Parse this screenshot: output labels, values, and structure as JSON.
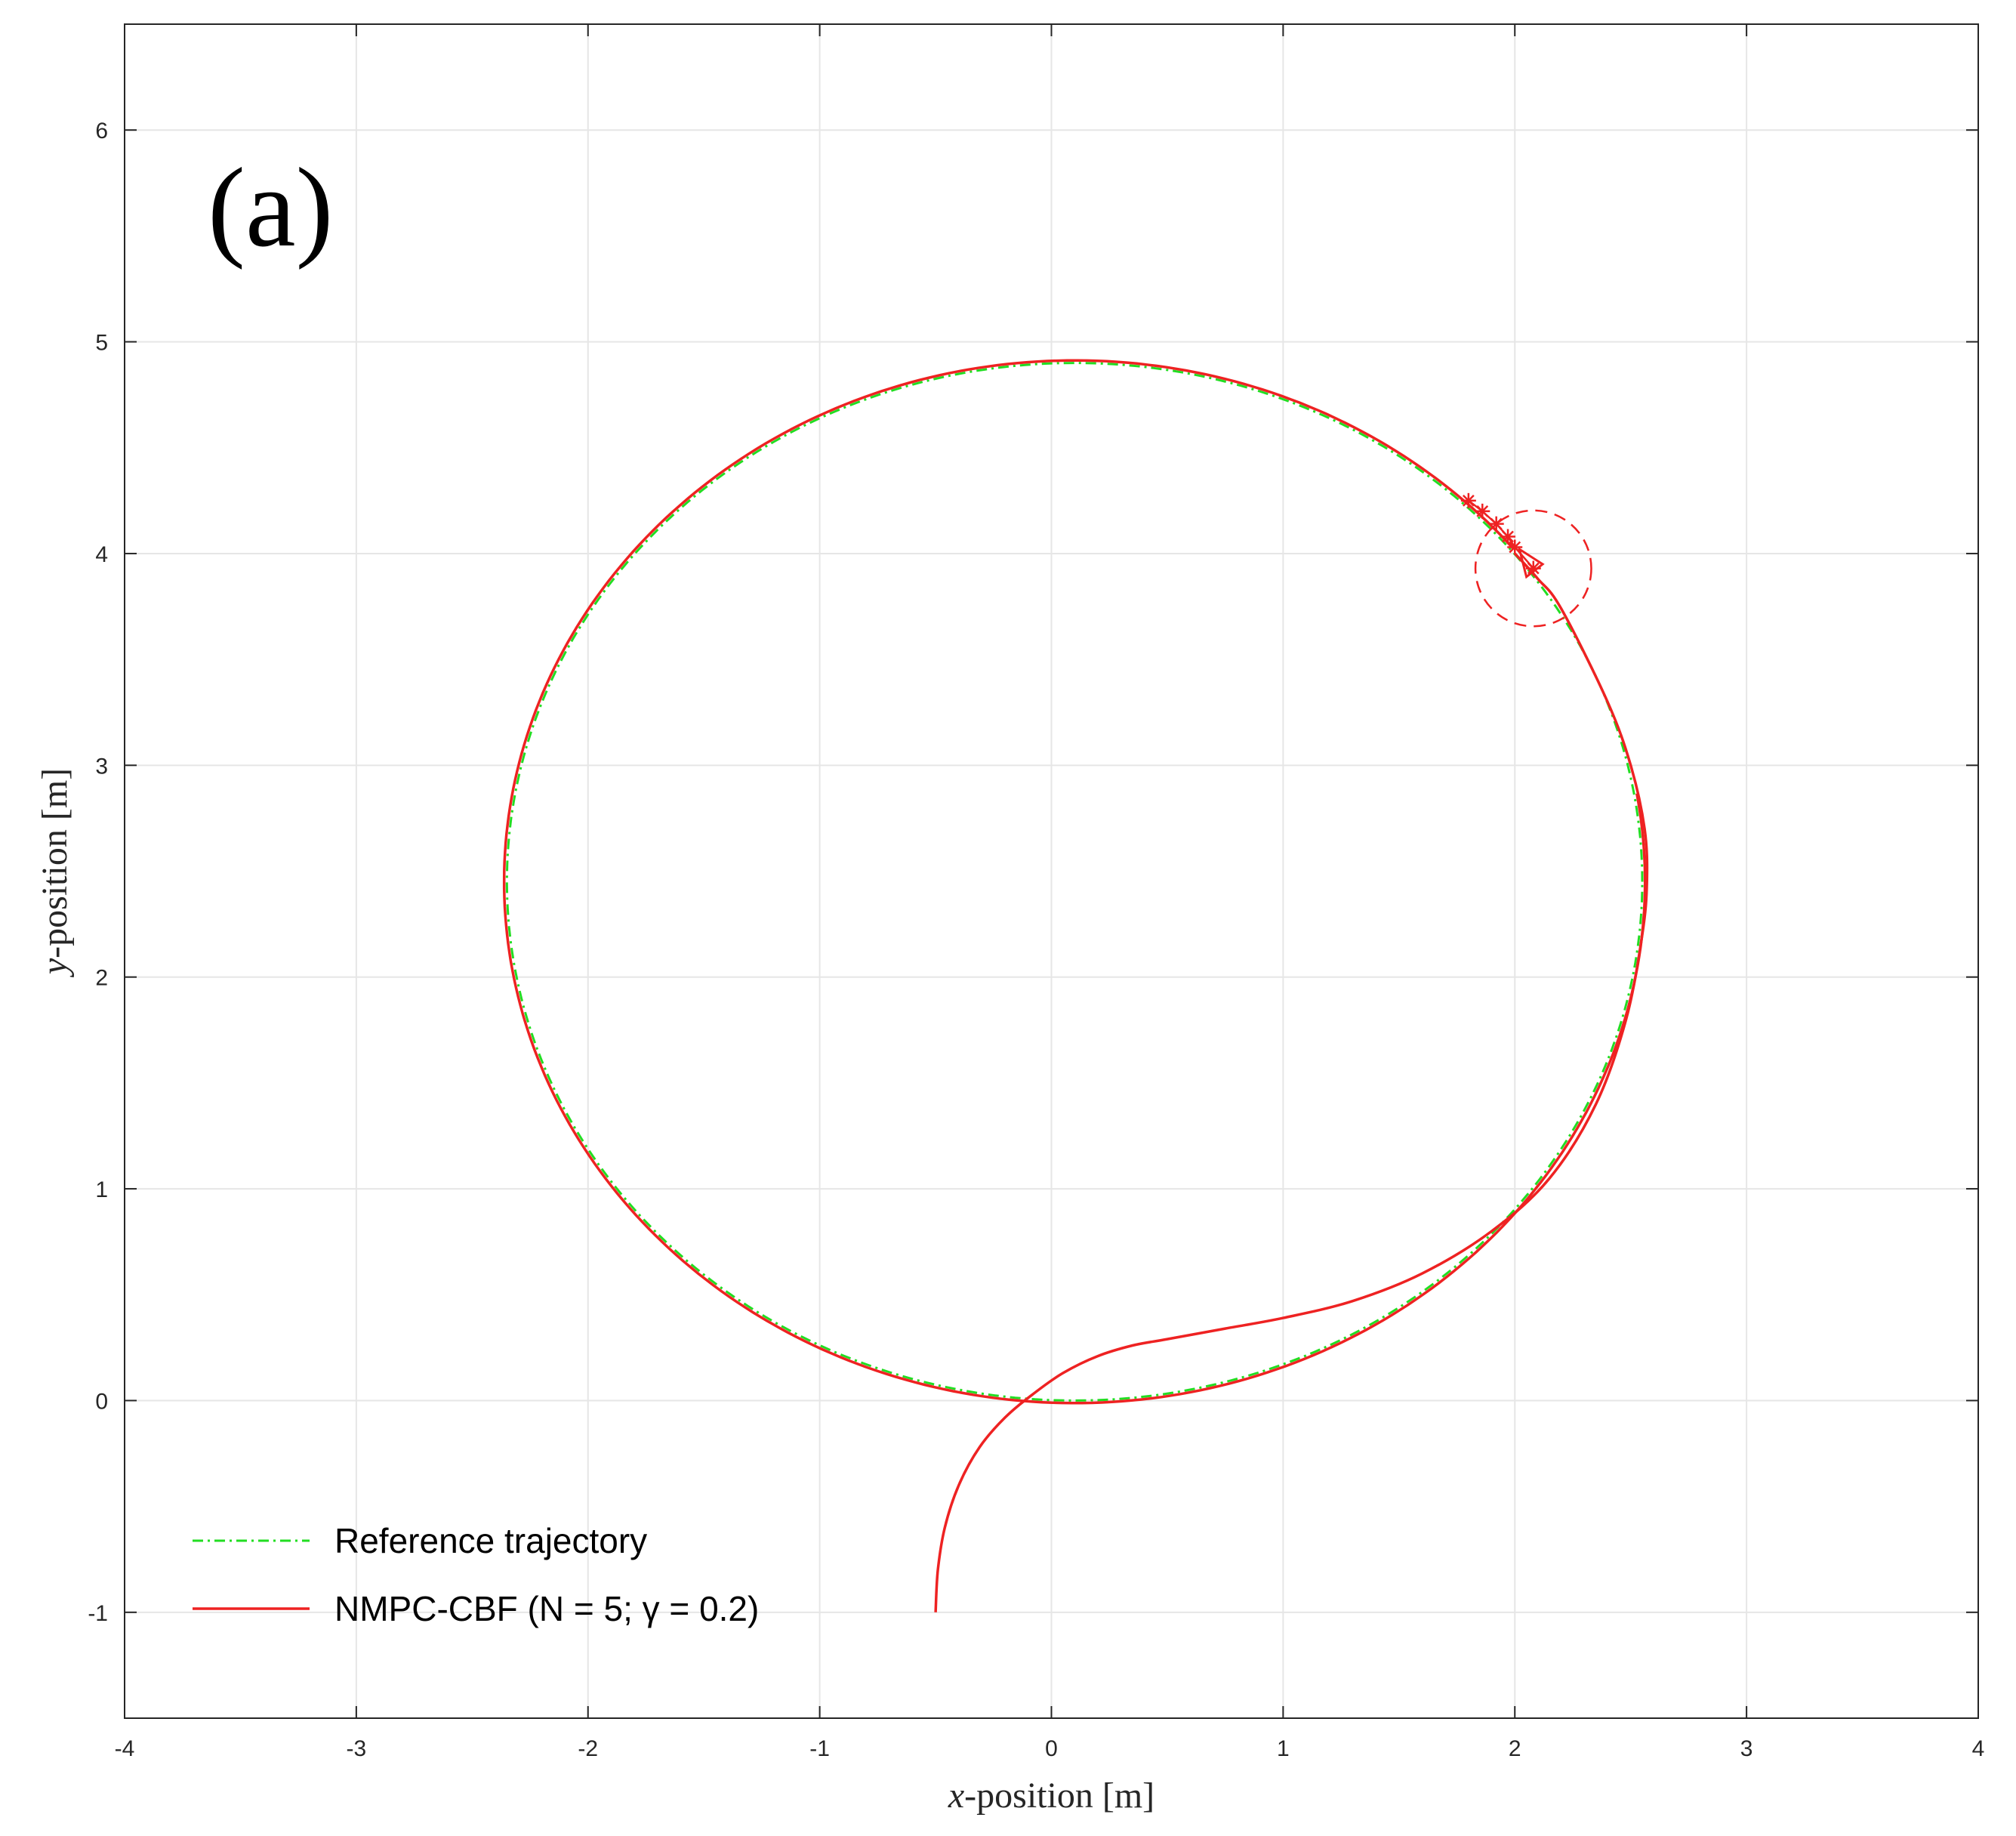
{
  "chart_data": {
    "type": "line",
    "panel_label": "(a)",
    "xlabel": {
      "var": "x",
      "rest": "-position [m]"
    },
    "ylabel": {
      "var": "y",
      "rest": "-position [m]"
    },
    "xlim": [
      -4,
      4
    ],
    "ylim": [
      -1.5,
      6.5
    ],
    "xticks": [
      -4,
      -3,
      -2,
      -1,
      0,
      1,
      2,
      3,
      4
    ],
    "yticks": [
      -1,
      0,
      1,
      2,
      3,
      4,
      5,
      6
    ],
    "grid": true,
    "legend_position": "bottom-left",
    "colors": {
      "reference": "#22dd22",
      "nmpc": "#ee2222",
      "axis": "#262626",
      "grid": "#e6e6e6"
    },
    "series": [
      {
        "name": "Reference trajectory",
        "style": "dash-dot",
        "shape": "circle",
        "center": [
          0.1,
          2.45
        ],
        "radius": 2.45
      },
      {
        "name": "NMPC-CBF (N = 5; γ = 0.2)",
        "style": "solid",
        "x": [
          -0.5,
          -0.49,
          -0.46,
          -0.4,
          -0.31,
          -0.2,
          -0.08,
          0.05,
          0.2,
          0.35,
          0.5,
          0.75,
          1.0,
          1.3,
          1.6,
          1.9,
          2.15,
          2.35,
          2.48,
          2.55,
          2.57,
          2.56,
          2.5,
          2.4,
          2.2,
          2.1,
          2.0
        ],
        "y": [
          -1.0,
          -0.8,
          -0.6,
          -0.4,
          -0.22,
          -0.08,
          0.03,
          0.13,
          0.21,
          0.26,
          0.29,
          0.34,
          0.39,
          0.47,
          0.6,
          0.8,
          1.05,
          1.4,
          1.8,
          2.2,
          2.45,
          2.7,
          3.0,
          3.3,
          3.74,
          3.88,
          4.0
        ]
      }
    ],
    "robot_marker": {
      "predicted_points": [
        [
          1.8,
          4.25
        ],
        [
          1.86,
          4.2
        ],
        [
          1.92,
          4.14
        ],
        [
          1.97,
          4.08
        ],
        [
          2.0,
          4.03
        ],
        [
          2.08,
          3.93
        ]
      ],
      "safety_circle": {
        "center": [
          2.08,
          3.93
        ],
        "radius": 0.25
      },
      "triangle": [
        [
          2.02,
          4.02
        ],
        [
          2.12,
          3.95
        ],
        [
          2.05,
          3.89
        ]
      ]
    }
  }
}
